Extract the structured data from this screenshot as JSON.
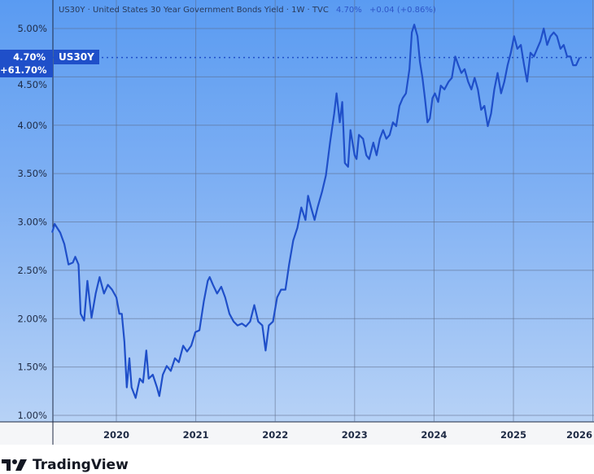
{
  "header": {
    "title": "US30Y · United States 30 Year Government Bonds Yield · 1W · TVC",
    "last_value": "4.70%",
    "change": "+0.04 (+0.86%)"
  },
  "price_label": {
    "value": "4.70%",
    "change_pct": "+61.70%",
    "symbol": "US30Y"
  },
  "branding": {
    "logo_text": "TradingView"
  },
  "colors": {
    "line": "#1f4fc9",
    "accent": "#2f57c8",
    "background_top": "#5a9bf2",
    "background_bottom": "#b7d2f6"
  },
  "chart_data": {
    "type": "line",
    "title": "US30Y · United States 30 Year Government Bonds Yield · 1W · TVC",
    "xlabel": "",
    "ylabel": "",
    "ylim": [
      1.0,
      5.05
    ],
    "y_ticks": [
      "5.00%",
      "4.50%",
      "4.00%",
      "3.50%",
      "3.00%",
      "2.50%",
      "2.00%",
      "1.50%",
      "1.00%"
    ],
    "x_ticks": [
      "2020",
      "2021",
      "2022",
      "2023",
      "2024",
      "2025",
      "2026"
    ],
    "grid": true,
    "last_value_line": 4.7,
    "series": [
      {
        "points": [
          [
            "2019-03-12",
            2.89
          ],
          [
            "2019-03-23",
            2.98
          ],
          [
            "2019-04-18",
            2.89
          ],
          [
            "2019-05-07",
            2.77
          ],
          [
            "2019-05-26",
            2.56
          ],
          [
            "2019-06-15",
            2.58
          ],
          [
            "2019-06-26",
            2.64
          ],
          [
            "2019-07-11",
            2.56
          ],
          [
            "2019-07-21",
            2.05
          ],
          [
            "2019-08-06",
            1.98
          ],
          [
            "2019-08-21",
            2.39
          ],
          [
            "2019-09-09",
            2.01
          ],
          [
            "2019-09-28",
            2.26
          ],
          [
            "2019-10-16",
            2.43
          ],
          [
            "2019-11-05",
            2.26
          ],
          [
            "2019-11-23",
            2.35
          ],
          [
            "2019-12-12",
            2.3
          ],
          [
            "2020-01-01",
            2.22
          ],
          [
            "2020-01-15",
            2.05
          ],
          [
            "2020-01-26",
            2.05
          ],
          [
            "2020-02-07",
            1.76
          ],
          [
            "2020-02-18",
            1.29
          ],
          [
            "2020-03-01",
            1.59
          ],
          [
            "2020-03-11",
            1.29
          ],
          [
            "2020-03-30",
            1.18
          ],
          [
            "2020-04-18",
            1.38
          ],
          [
            "2020-05-03",
            1.34
          ],
          [
            "2020-05-18",
            1.67
          ],
          [
            "2020-05-29",
            1.38
          ],
          [
            "2020-06-17",
            1.42
          ],
          [
            "2020-07-06",
            1.29
          ],
          [
            "2020-07-17",
            1.2
          ],
          [
            "2020-08-02",
            1.42
          ],
          [
            "2020-08-20",
            1.51
          ],
          [
            "2020-09-08",
            1.46
          ],
          [
            "2020-09-27",
            1.59
          ],
          [
            "2020-10-15",
            1.55
          ],
          [
            "2020-11-04",
            1.72
          ],
          [
            "2020-11-22",
            1.66
          ],
          [
            "2020-12-11",
            1.72
          ],
          [
            "2020-12-30",
            1.86
          ],
          [
            "2021-01-18",
            1.88
          ],
          [
            "2021-02-07",
            2.18
          ],
          [
            "2021-02-25",
            2.39
          ],
          [
            "2021-03-06",
            2.43
          ],
          [
            "2021-03-21",
            2.35
          ],
          [
            "2021-04-09",
            2.26
          ],
          [
            "2021-04-28",
            2.33
          ],
          [
            "2021-05-16",
            2.22
          ],
          [
            "2021-06-05",
            2.05
          ],
          [
            "2021-06-24",
            1.97
          ],
          [
            "2021-07-12",
            1.93
          ],
          [
            "2021-08-01",
            1.95
          ],
          [
            "2021-08-19",
            1.92
          ],
          [
            "2021-09-08",
            1.97
          ],
          [
            "2021-09-27",
            2.14
          ],
          [
            "2021-10-15",
            1.97
          ],
          [
            "2021-11-03",
            1.93
          ],
          [
            "2021-11-18",
            1.67
          ],
          [
            "2021-12-03",
            1.93
          ],
          [
            "2021-12-22",
            1.97
          ],
          [
            "2022-01-10",
            2.22
          ],
          [
            "2022-01-28",
            2.3
          ],
          [
            "2022-02-17",
            2.3
          ],
          [
            "2022-03-06",
            2.56
          ],
          [
            "2022-03-25",
            2.81
          ],
          [
            "2022-04-13",
            2.94
          ],
          [
            "2022-05-01",
            3.15
          ],
          [
            "2022-05-20",
            3.02
          ],
          [
            "2022-06-01",
            3.27
          ],
          [
            "2022-06-15",
            3.15
          ],
          [
            "2022-07-01",
            3.02
          ],
          [
            "2022-07-15",
            3.15
          ],
          [
            "2022-08-04",
            3.31
          ],
          [
            "2022-08-22",
            3.48
          ],
          [
            "2022-09-10",
            3.82
          ],
          [
            "2022-09-29",
            4.12
          ],
          [
            "2022-10-10",
            4.33
          ],
          [
            "2022-10-25",
            4.03
          ],
          [
            "2022-11-05",
            4.24
          ],
          [
            "2022-11-17",
            3.61
          ],
          [
            "2022-12-02",
            3.57
          ],
          [
            "2022-12-13",
            3.95
          ],
          [
            "2023-01-01",
            3.69
          ],
          [
            "2023-01-10",
            3.65
          ],
          [
            "2023-01-21",
            3.9
          ],
          [
            "2023-02-09",
            3.86
          ],
          [
            "2023-02-24",
            3.69
          ],
          [
            "2023-03-09",
            3.65
          ],
          [
            "2023-03-28",
            3.82
          ],
          [
            "2023-04-12",
            3.69
          ],
          [
            "2023-04-27",
            3.86
          ],
          [
            "2023-05-12",
            3.95
          ],
          [
            "2023-05-27",
            3.86
          ],
          [
            "2023-06-11",
            3.9
          ],
          [
            "2023-06-26",
            4.03
          ],
          [
            "2023-07-11",
            3.99
          ],
          [
            "2023-07-26",
            4.2
          ],
          [
            "2023-08-10",
            4.28
          ],
          [
            "2023-08-25",
            4.33
          ],
          [
            "2023-09-10",
            4.58
          ],
          [
            "2023-09-21",
            4.96
          ],
          [
            "2023-10-02",
            5.04
          ],
          [
            "2023-10-17",
            4.92
          ],
          [
            "2023-10-28",
            4.66
          ],
          [
            "2023-11-09",
            4.49
          ],
          [
            "2023-11-20",
            4.28
          ],
          [
            "2023-12-02",
            4.03
          ],
          [
            "2023-12-13",
            4.07
          ],
          [
            "2023-12-25",
            4.28
          ],
          [
            "2024-01-05",
            4.33
          ],
          [
            "2024-01-20",
            4.24
          ],
          [
            "2024-02-01",
            4.41
          ],
          [
            "2024-02-18",
            4.37
          ],
          [
            "2024-03-08",
            4.45
          ],
          [
            "2024-03-23",
            4.49
          ],
          [
            "2024-04-08",
            4.71
          ],
          [
            "2024-04-22",
            4.62
          ],
          [
            "2024-05-06",
            4.54
          ],
          [
            "2024-05-21",
            4.58
          ],
          [
            "2024-06-06",
            4.45
          ],
          [
            "2024-06-21",
            4.37
          ],
          [
            "2024-07-06",
            4.49
          ],
          [
            "2024-07-21",
            4.37
          ],
          [
            "2024-08-05",
            4.16
          ],
          [
            "2024-08-20",
            4.2
          ],
          [
            "2024-09-05",
            3.99
          ],
          [
            "2024-09-20",
            4.12
          ],
          [
            "2024-10-05",
            4.37
          ],
          [
            "2024-10-20",
            4.54
          ],
          [
            "2024-11-05",
            4.33
          ],
          [
            "2024-11-20",
            4.45
          ],
          [
            "2024-12-05",
            4.62
          ],
          [
            "2024-12-20",
            4.75
          ],
          [
            "2025-01-04",
            4.92
          ],
          [
            "2025-01-19",
            4.79
          ],
          [
            "2025-02-04",
            4.83
          ],
          [
            "2025-02-19",
            4.62
          ],
          [
            "2025-03-05",
            4.45
          ],
          [
            "2025-03-20",
            4.75
          ],
          [
            "2025-04-05",
            4.71
          ],
          [
            "2025-04-20",
            4.79
          ],
          [
            "2025-05-05",
            4.87
          ],
          [
            "2025-05-20",
            5.0
          ],
          [
            "2025-06-05",
            4.83
          ],
          [
            "2025-06-20",
            4.92
          ],
          [
            "2025-07-05",
            4.96
          ],
          [
            "2025-07-20",
            4.92
          ],
          [
            "2025-08-05",
            4.79
          ],
          [
            "2025-08-20",
            4.83
          ],
          [
            "2025-09-05",
            4.71
          ],
          [
            "2025-09-20",
            4.71
          ],
          [
            "2025-10-02",
            4.62
          ],
          [
            "2025-10-16",
            4.62
          ],
          [
            "2025-11-01",
            4.7
          ]
        ]
      }
    ]
  }
}
